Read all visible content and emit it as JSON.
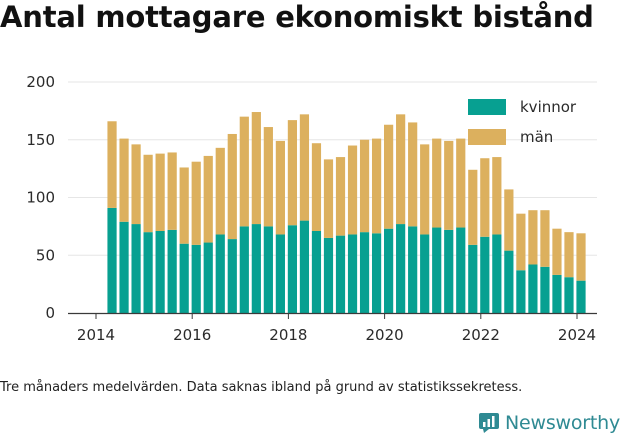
{
  "chart_data": {
    "type": "bar",
    "stacked": true,
    "title": "Antal mottagare ekonomiskt bistånd",
    "xlabel": "",
    "ylabel": "",
    "x": [
      "2014-05",
      "2014-08",
      "2014-11",
      "2015-02",
      "2015-05",
      "2015-08",
      "2015-11",
      "2016-02",
      "2016-05",
      "2016-08",
      "2016-11",
      "2017-02",
      "2017-05",
      "2017-08",
      "2017-11",
      "2018-02",
      "2018-05",
      "2018-08",
      "2018-11",
      "2019-02",
      "2019-05",
      "2019-08",
      "2019-11",
      "2020-02",
      "2020-05",
      "2020-08",
      "2020-11",
      "2021-02",
      "2021-05",
      "2021-08",
      "2021-11",
      "2022-02",
      "2022-05",
      "2022-08",
      "2022-11",
      "2023-02",
      "2023-05",
      "2023-08",
      "2023-11",
      "2024-02"
    ],
    "series": [
      {
        "name": "kvinnor",
        "color": "#07a091",
        "values": [
          91,
          79,
          77,
          70,
          71,
          72,
          60,
          59,
          61,
          68,
          64,
          75,
          77,
          75,
          68,
          76,
          80,
          71,
          65,
          67,
          68,
          70,
          69,
          73,
          77,
          75,
          68,
          74,
          72,
          74,
          59,
          66,
          68,
          54,
          37,
          42,
          40,
          33,
          31,
          28
        ]
      },
      {
        "name": "män",
        "color": "#dcb05e",
        "values": [
          75,
          72,
          69,
          67,
          67,
          67,
          66,
          72,
          75,
          75,
          91,
          95,
          97,
          86,
          81,
          91,
          92,
          76,
          68,
          68,
          77,
          80,
          82,
          90,
          95,
          90,
          78,
          77,
          77,
          77,
          65,
          68,
          67,
          53,
          49,
          47,
          49,
          40,
          39,
          41
        ]
      }
    ],
    "xticks": [
      "2014",
      "2016",
      "2018",
      "2020",
      "2022",
      "2024"
    ],
    "yticks": [
      "0",
      "50",
      "100",
      "150",
      "200"
    ],
    "ylim": [
      0,
      200
    ],
    "legend_position": "top-right",
    "grid": "horizontal"
  },
  "footnote": "Tre månaders medelvärden. Data saknas ibland på grund av statistikssekretess.",
  "brand": {
    "name": "Newsworthy",
    "icon": "newsworthy-logo-icon",
    "color": "#2f8a93"
  }
}
